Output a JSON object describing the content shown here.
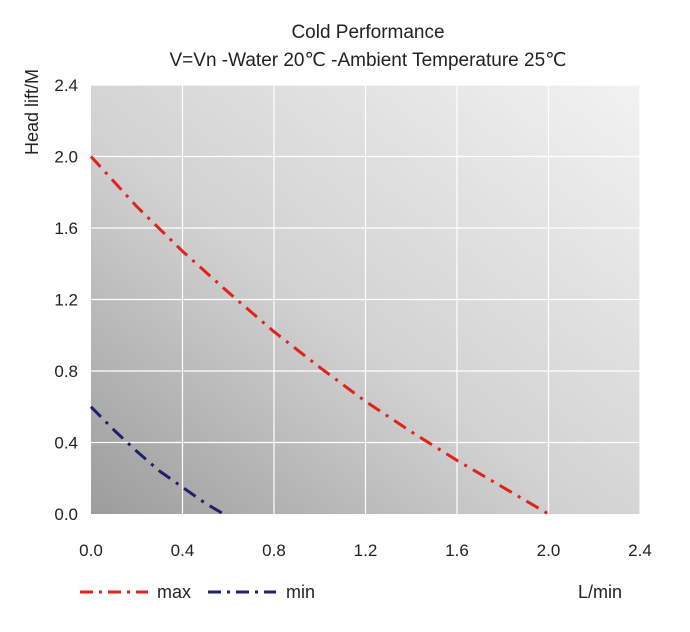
{
  "chart_data": {
    "type": "line",
    "title": "Cold Performance",
    "subtitle": "V=Vn -Water 20℃ -Ambient Temperature 25℃",
    "ylabel": "Head lift/M",
    "xlabel": "L/min",
    "xlim": [
      0,
      2.4
    ],
    "ylim": [
      0,
      2.4
    ],
    "x_ticks": [
      "0.0",
      "0.4",
      "0.8",
      "1.2",
      "1.6",
      "2.0",
      "2.4"
    ],
    "y_ticks": [
      "0.0",
      "0.4",
      "0.8",
      "1.2",
      "1.6",
      "2.0",
      "2.4"
    ],
    "grid": true,
    "legend_position": "bottom-left",
    "series": [
      {
        "name": "max",
        "color": "#e0221d",
        "style": "dash-dot",
        "x": [
          0.0,
          0.2,
          0.4,
          0.6,
          0.8,
          1.0,
          1.2,
          1.4,
          1.6,
          1.8,
          2.0
        ],
        "y": [
          2.0,
          1.72,
          1.47,
          1.24,
          1.02,
          0.82,
          0.63,
          0.46,
          0.3,
          0.15,
          0.0
        ]
      },
      {
        "name": "min",
        "color": "#1f1f6e",
        "style": "dash-dot",
        "x": [
          0.0,
          0.1,
          0.2,
          0.3,
          0.4,
          0.5,
          0.58
        ],
        "y": [
          0.6,
          0.47,
          0.35,
          0.24,
          0.15,
          0.06,
          0.0
        ]
      }
    ]
  }
}
